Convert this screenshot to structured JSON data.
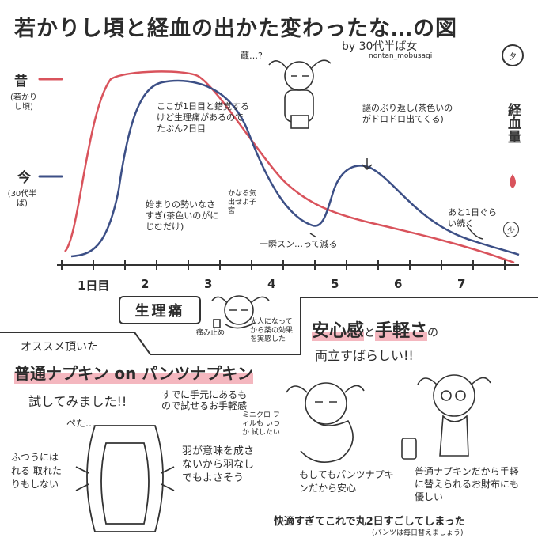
{
  "title": "若かりし頃と経血の出かた変わったな…の図",
  "byline": "by 30代半ば女",
  "handle": "nontan_mobusagi",
  "seal": "夕",
  "colors": {
    "past": "#d9535c",
    "now": "#3c4f86",
    "ink": "#2b2b2b",
    "highlight": "#f4b7bf"
  },
  "legend": {
    "past_label": "昔",
    "past_sub": "(若かりし頃)",
    "now_label": "今",
    "now_sub": "(30代半ば)"
  },
  "y_axis_label": "経血量",
  "annotations": {
    "day_one_confusion": "ここが1日目と錯覚するけど生理痛があるのでたぶん2日目",
    "start_slow": "始まりの勢いなさすぎ(茶色いのがにじむだけ)",
    "pain_note": "かなる気出せよ子宮",
    "sudden_drop": "一瞬スン…って減る",
    "mystery_return": "謎のぶり返し(茶色いのがドロドロ出てくる)",
    "lingering": "あと1日ぐらい続く",
    "hm": "蔵…?",
    "low_badge": "少"
  },
  "x_axis": {
    "ticks": [
      "1日目",
      "2",
      "3",
      "4",
      "5",
      "6",
      "7"
    ]
  },
  "pain_box": {
    "label": "生理痛",
    "pill_note": "痛み止め",
    "adult_note": "大人になってから薬の効果を実感した"
  },
  "recommend": {
    "header": "オススメ頂いた",
    "method": "普通ナプキン on パンツナプキン",
    "tried": "試してみました!!",
    "easy": "すでに手元にあるもので試せるお手軽感",
    "mini": "ミニクロ フィルも いつか 試したい",
    "flat": "ぺた…",
    "normal_pad": "ふつうにはれる 取れたりもしない",
    "wings": "羽が意味を成さないから羽なしでもよさそう"
  },
  "benefit": {
    "headline_part1": "安心感",
    "headline_and": "と",
    "headline_part2": "手軽さ",
    "headline_no": "の",
    "subline": "両立すばらしい!!",
    "safe": "もしてもパンツナプキンだから安心",
    "wallet": "普通ナプキンだから手軽に替えられるお財布にも優しい"
  },
  "footer": {
    "main": "快適すぎてこれで丸2日すごしてしまった",
    "sub": "(パンツは毎日替えましょう)"
  },
  "chart_data": {
    "type": "line",
    "x": [
      1,
      2,
      3,
      4,
      5,
      6,
      7
    ],
    "series": [
      {
        "name": "昔",
        "values": [
          0.05,
          1.0,
          0.98,
          0.55,
          0.25,
          0.12,
          0.03
        ]
      },
      {
        "name": "今",
        "values": [
          0.05,
          0.9,
          0.95,
          0.35,
          0.45,
          0.18,
          0.08
        ]
      }
    ],
    "xlabel": "",
    "ylabel": "経血量"
  }
}
